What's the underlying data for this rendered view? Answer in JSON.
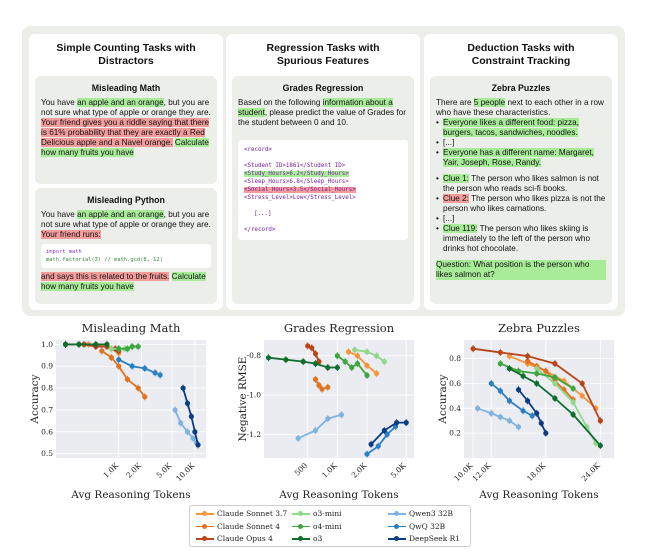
{
  "panels": {
    "counting": {
      "title": "Simple Counting Tasks with Distractors",
      "math_title": "Misleading Math",
      "math_text_1": "You have ",
      "math_hl_1": "an apple and an orange",
      "math_text_2": ", but you are not sure what type of apple or orange they are. ",
      "math_hl_2": "Your friend gives you a riddle saying that there is 61% probability that they are exactly a Red Delicious apple and a Navel orange.",
      "math_hl_3": "Calculate how many fruits you have",
      "python_title": "Misleading Python",
      "py_text_1": "You have ",
      "py_hl_1": "an apple and an orange",
      "py_text_2": ", but you are not sure what type of apple or orange they are. ",
      "py_hl_2": "Your friend runs:",
      "code_line_1": "import math",
      "code_line_2": "math.factorial(3) // math.gcd(8, 12)",
      "py_hl_3": "and says this is related to the fruits.",
      "py_hl_4": "Calculate how many fruits you have"
    },
    "regression": {
      "title": "Regression Tasks with Spurious Features",
      "card_title": "Grades Regression",
      "text_1": "Based on the following ",
      "hl_1": "information about a student",
      "text_2": ", please predict the value of Grades for the student between 0 and 10.",
      "rec_open": "<record>",
      "rec_1": "<Student ID>1861</Student ID>",
      "rec_2": "<Study_Hours>6.2</Study_Hours>",
      "rec_3": "<Sleep_Hours>6.8</Sleep_Hours>",
      "rec_4": "<Social_Hours>3.5</Social_Hours>",
      "rec_5": "<Stress_Level>Low</Stress_Level>",
      "rec_ellipsis": "[...]",
      "rec_close": "</record>"
    },
    "deduction": {
      "title": "Deduction Tasks with Constraint Tracking",
      "card_title": "Zebra Puzzles",
      "text_1": "There are ",
      "hl_1": "5 people",
      "text_2": " next to each other in a row who have these characteristics.",
      "b1": "Everyone likes a different food: pizza, burgers, tacos, sandwiches, noodles.",
      "b2": "[...]",
      "b3": "Everyone has a different name: Margaret, Yair, Joseph, Rose, Randy.",
      "c1_label": "Clue 1:",
      "c1_text": " The person who likes salmon is not the person who reads sci-fi books.",
      "c2_label": "Clue 2:",
      "c2_text": " The person who likes pizza is not the person who likes carnations.",
      "b4": "[...]",
      "c3_label": "Clue 119:",
      "c3_text": " The person who likes skiing is immediately to the left of the person who drinks hot chocolate.",
      "question": "Question: What position is the person who likes salmon at?"
    }
  },
  "chart_data": [
    {
      "type": "line",
      "title": "Misleading Math",
      "xlabel": "Avg Reasoning Tokens",
      "ylabel": "Accuracy",
      "xscale": "log",
      "xticks": [
        "1.0K",
        "2.0K",
        "5.0K",
        "10.0K"
      ],
      "yticks": [
        0.5,
        0.6,
        0.7,
        0.8,
        0.9,
        1.0
      ],
      "ylim": [
        0.48,
        1.02
      ],
      "series": [
        {
          "name": "Claude Sonnet 3.7",
          "x": [
            200,
            400,
            700,
            800,
            1000
          ],
          "y": [
            1.0,
            1.0,
            0.99,
            0.98,
            0.96
          ]
        },
        {
          "name": "Claude Sonnet 4",
          "x": [
            600,
            800,
            1000,
            1300,
            1800,
            2200
          ],
          "y": [
            0.97,
            0.94,
            0.9,
            0.84,
            0.8,
            0.76
          ]
        },
        {
          "name": "Claude Opus 4",
          "x": [
            200,
            350,
            500,
            700,
            900,
            1000
          ],
          "y": [
            1.0,
            1.0,
            0.99,
            0.99,
            0.98,
            0.97
          ]
        },
        {
          "name": "o3-mini",
          "x": [
            800,
            1000,
            1200,
            1500
          ],
          "y": [
            0.98,
            0.98,
            0.98,
            0.99
          ]
        },
        {
          "name": "o4-mini",
          "x": [
            1000,
            1300,
            1500,
            1800
          ],
          "y": [
            0.98,
            0.98,
            0.99,
            0.99
          ]
        },
        {
          "name": "o3",
          "x": [
            200,
            300,
            500,
            700
          ],
          "y": [
            1.0,
            1.0,
            1.0,
            1.0
          ]
        },
        {
          "name": "Qwen3 32B",
          "x": [
            5500,
            6500,
            8000,
            9500,
            10500
          ],
          "y": [
            0.7,
            0.64,
            0.6,
            0.57,
            0.55
          ]
        },
        {
          "name": "QwQ 32B",
          "x": [
            1000,
            1500,
            2200,
            3000,
            3500
          ],
          "y": [
            0.93,
            0.9,
            0.89,
            0.87,
            0.86
          ]
        },
        {
          "name": "DeepSeek R1",
          "x": [
            7000,
            8000,
            9000,
            10000,
            11000
          ],
          "y": [
            0.8,
            0.73,
            0.67,
            0.6,
            0.54
          ]
        }
      ]
    },
    {
      "type": "line",
      "title": "Grades Regression",
      "xlabel": "Avg Reasoning Tokens",
      "ylabel": "Negative RMSE",
      "xscale": "log",
      "xticks": [
        "500",
        "1.0K",
        "2.0K",
        "5.0K"
      ],
      "yticks": [
        -1.2,
        -1.0,
        -0.8
      ],
      "ylim": [
        -1.32,
        -0.72
      ],
      "series": [
        {
          "name": "Claude Sonnet 3.7",
          "x": [
            1300,
            1600,
            2000,
            2500
          ],
          "y": [
            -0.78,
            -0.8,
            -0.85,
            -0.89
          ]
        },
        {
          "name": "Claude Sonnet 4",
          "x": [
            600,
            650,
            700,
            800
          ],
          "y": [
            -0.92,
            -0.95,
            -0.97,
            -0.96
          ]
        },
        {
          "name": "Claude Opus 4",
          "x": [
            500,
            550,
            600,
            650
          ],
          "y": [
            -0.75,
            -0.76,
            -0.79,
            -0.83
          ]
        },
        {
          "name": "o3-mini",
          "x": [
            1500,
            2000,
            2500,
            3000
          ],
          "y": [
            -0.77,
            -0.78,
            -0.8,
            -0.83
          ]
        },
        {
          "name": "o4-mini",
          "x": [
            1000,
            1200,
            1400,
            1600,
            2000
          ],
          "y": [
            -0.8,
            -0.83,
            -0.86,
            -0.84,
            -0.9
          ]
        },
        {
          "name": "o3",
          "x": [
            200,
            300,
            450,
            600,
            800,
            1000
          ],
          "y": [
            -0.81,
            -0.82,
            -0.83,
            -0.84,
            -0.86,
            -0.86
          ]
        },
        {
          "name": "Qwen3 32B",
          "x": [
            400,
            600,
            800,
            1100
          ],
          "y": [
            -1.22,
            -1.18,
            -1.12,
            -1.1
          ]
        },
        {
          "name": "QwQ 32B",
          "x": [
            2000,
            2600,
            3200,
            3900
          ],
          "y": [
            -1.3,
            -1.26,
            -1.2,
            -1.16
          ]
        },
        {
          "name": "DeepSeek R1",
          "x": [
            2200,
            3000,
            4000,
            5000
          ],
          "y": [
            -1.25,
            -1.18,
            -1.14,
            -1.14
          ]
        }
      ]
    },
    {
      "type": "line",
      "title": "Zebra Puzzles",
      "xlabel": "Avg Reasoning Tokens",
      "ylabel": "Accuracy",
      "xticks": [
        "10.0K",
        "12.0K",
        "18.0K",
        "24.0K"
      ],
      "yticks": [
        0.2,
        0.4,
        0.6,
        0.8
      ],
      "ylim": [
        0.0,
        0.95
      ],
      "series": [
        {
          "name": "Claude Sonnet 3.7",
          "x": [
            14000,
            16000,
            18000,
            20000,
            22000,
            23500
          ],
          "y": [
            0.82,
            0.76,
            0.7,
            0.62,
            0.5,
            0.4
          ]
        },
        {
          "name": "Claude Sonnet 4",
          "x": [
            16000,
            17000,
            18000,
            19000,
            20000,
            21000
          ],
          "y": [
            0.78,
            0.74,
            0.7,
            0.62,
            0.55,
            0.47
          ]
        },
        {
          "name": "Claude Opus 4",
          "x": [
            10000,
            13000,
            16000,
            19000,
            22000,
            24000
          ],
          "y": [
            0.88,
            0.85,
            0.82,
            0.76,
            0.6,
            0.3
          ]
        },
        {
          "name": "o3-mini",
          "x": [
            17000,
            19000,
            21000,
            22500,
            23500
          ],
          "y": [
            0.72,
            0.6,
            0.45,
            0.25,
            0.12
          ]
        },
        {
          "name": "o4-mini",
          "x": [
            13000,
            15000,
            17000,
            19000,
            21000
          ],
          "y": [
            0.76,
            0.7,
            0.68,
            0.65,
            0.56
          ]
        },
        {
          "name": "o3",
          "x": [
            14000,
            15500,
            17000,
            19000,
            21000,
            24000
          ],
          "y": [
            0.72,
            0.66,
            0.6,
            0.48,
            0.35,
            0.1
          ]
        },
        {
          "name": "Qwen3 32B",
          "x": [
            10500,
            12000,
            13000,
            14000,
            15000
          ],
          "y": [
            0.4,
            0.36,
            0.33,
            0.3,
            0.25
          ]
        },
        {
          "name": "QwQ 32B",
          "x": [
            12000,
            13000,
            14000,
            15500,
            16500
          ],
          "y": [
            0.6,
            0.54,
            0.46,
            0.38,
            0.34
          ]
        },
        {
          "name": "DeepSeek R1",
          "x": [
            15000,
            16000,
            17000,
            17500,
            18000
          ],
          "y": [
            0.55,
            0.46,
            0.36,
            0.28,
            0.2
          ]
        }
      ]
    }
  ],
  "colors": {
    "Claude Sonnet 3.7": "#f5963a",
    "Claude Sonnet 4": "#e0731f",
    "Claude Opus 4": "#b8461a",
    "o3-mini": "#90d88a",
    "o4-mini": "#3ea63e",
    "o3": "#0f6e2d",
    "Qwen3 32B": "#7fb4e0",
    "QwQ 32B": "#2c7fc0",
    "DeepSeek R1": "#0a3d82"
  },
  "legend": [
    "Claude Sonnet 3.7",
    "o3-mini",
    "Qwen3 32B",
    "Claude Sonnet 4",
    "o4-mini",
    "QwQ 32B",
    "Claude Opus 4",
    "o3",
    "DeepSeek R1"
  ]
}
